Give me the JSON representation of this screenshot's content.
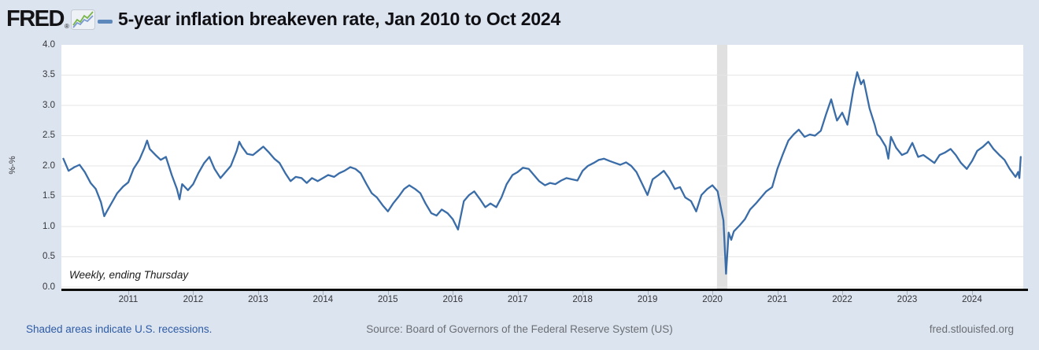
{
  "header": {
    "brand": "FRED",
    "registered_mark": "®",
    "title": "5-year inflation breakeven rate, Jan 2010 to Oct 2024",
    "legend_color": "#5d88bb"
  },
  "chart_data": {
    "type": "line",
    "title": "5-year inflation breakeven rate, Jan 2010 to Oct 2024",
    "ylabel": "%-%",
    "frequency_note": "Weekly, ending Thursday",
    "ylim": [
      0.0,
      4.0
    ],
    "xlim": [
      2010.0,
      2024.85
    ],
    "y_ticks": [
      0.0,
      0.5,
      1.0,
      1.5,
      2.0,
      2.5,
      3.0,
      3.5,
      4.0
    ],
    "y_gridlines": [
      0.0,
      0.5,
      1.0,
      1.5,
      2.0,
      2.5,
      3.0,
      3.5
    ],
    "x_ticks": [
      2011,
      2012,
      2013,
      2014,
      2015,
      2016,
      2017,
      2018,
      2019,
      2020,
      2021,
      2022,
      2023,
      2024
    ],
    "grid": "horizontal",
    "legend_position": "top-left-as-dash",
    "line_color": "#3a6da8",
    "grid_color": "#e6e6e6",
    "recession_color": "#e0e0e0",
    "plot_bg": "#ffffff",
    "page_bg": "#dce4ef",
    "recessions": [
      {
        "start": 2020.07,
        "end": 2020.23
      }
    ],
    "series": [
      {
        "name": "5-year inflation breakeven rate",
        "points": [
          [
            2010.0,
            2.12
          ],
          [
            2010.08,
            1.92
          ],
          [
            2010.17,
            1.98
          ],
          [
            2010.25,
            2.02
          ],
          [
            2010.33,
            1.9
          ],
          [
            2010.42,
            1.72
          ],
          [
            2010.5,
            1.62
          ],
          [
            2010.58,
            1.4
          ],
          [
            2010.63,
            1.17
          ],
          [
            2010.67,
            1.25
          ],
          [
            2010.75,
            1.4
          ],
          [
            2010.83,
            1.55
          ],
          [
            2010.92,
            1.66
          ],
          [
            2011.0,
            1.73
          ],
          [
            2011.08,
            1.95
          ],
          [
            2011.17,
            2.1
          ],
          [
            2011.25,
            2.3
          ],
          [
            2011.29,
            2.42
          ],
          [
            2011.33,
            2.28
          ],
          [
            2011.42,
            2.18
          ],
          [
            2011.5,
            2.1
          ],
          [
            2011.58,
            2.15
          ],
          [
            2011.67,
            1.85
          ],
          [
            2011.75,
            1.62
          ],
          [
            2011.79,
            1.45
          ],
          [
            2011.83,
            1.7
          ],
          [
            2011.92,
            1.6
          ],
          [
            2012.0,
            1.7
          ],
          [
            2012.08,
            1.88
          ],
          [
            2012.17,
            2.05
          ],
          [
            2012.25,
            2.15
          ],
          [
            2012.33,
            1.95
          ],
          [
            2012.42,
            1.8
          ],
          [
            2012.5,
            1.9
          ],
          [
            2012.58,
            2.0
          ],
          [
            2012.67,
            2.25
          ],
          [
            2012.71,
            2.4
          ],
          [
            2012.75,
            2.32
          ],
          [
            2012.83,
            2.2
          ],
          [
            2012.92,
            2.18
          ],
          [
            2013.0,
            2.25
          ],
          [
            2013.08,
            2.32
          ],
          [
            2013.17,
            2.22
          ],
          [
            2013.25,
            2.12
          ],
          [
            2013.33,
            2.05
          ],
          [
            2013.42,
            1.88
          ],
          [
            2013.5,
            1.75
          ],
          [
            2013.58,
            1.82
          ],
          [
            2013.67,
            1.8
          ],
          [
            2013.75,
            1.72
          ],
          [
            2013.83,
            1.8
          ],
          [
            2013.92,
            1.75
          ],
          [
            2014.0,
            1.8
          ],
          [
            2014.08,
            1.85
          ],
          [
            2014.17,
            1.82
          ],
          [
            2014.25,
            1.88
          ],
          [
            2014.33,
            1.92
          ],
          [
            2014.42,
            1.98
          ],
          [
            2014.5,
            1.95
          ],
          [
            2014.58,
            1.88
          ],
          [
            2014.67,
            1.7
          ],
          [
            2014.75,
            1.55
          ],
          [
            2014.83,
            1.48
          ],
          [
            2014.92,
            1.35
          ],
          [
            2015.0,
            1.25
          ],
          [
            2015.08,
            1.38
          ],
          [
            2015.17,
            1.5
          ],
          [
            2015.25,
            1.62
          ],
          [
            2015.33,
            1.68
          ],
          [
            2015.42,
            1.62
          ],
          [
            2015.5,
            1.55
          ],
          [
            2015.58,
            1.38
          ],
          [
            2015.67,
            1.22
          ],
          [
            2015.75,
            1.18
          ],
          [
            2015.83,
            1.28
          ],
          [
            2015.92,
            1.22
          ],
          [
            2016.0,
            1.12
          ],
          [
            2016.08,
            0.95
          ],
          [
            2016.17,
            1.42
          ],
          [
            2016.25,
            1.52
          ],
          [
            2016.33,
            1.58
          ],
          [
            2016.42,
            1.45
          ],
          [
            2016.5,
            1.32
          ],
          [
            2016.58,
            1.38
          ],
          [
            2016.67,
            1.32
          ],
          [
            2016.75,
            1.48
          ],
          [
            2016.83,
            1.7
          ],
          [
            2016.92,
            1.85
          ],
          [
            2017.0,
            1.9
          ],
          [
            2017.08,
            1.97
          ],
          [
            2017.17,
            1.95
          ],
          [
            2017.25,
            1.85
          ],
          [
            2017.33,
            1.75
          ],
          [
            2017.42,
            1.68
          ],
          [
            2017.5,
            1.72
          ],
          [
            2017.58,
            1.7
          ],
          [
            2017.67,
            1.76
          ],
          [
            2017.75,
            1.8
          ],
          [
            2017.83,
            1.78
          ],
          [
            2017.92,
            1.76
          ],
          [
            2018.0,
            1.92
          ],
          [
            2018.08,
            2.0
          ],
          [
            2018.17,
            2.05
          ],
          [
            2018.25,
            2.1
          ],
          [
            2018.33,
            2.12
          ],
          [
            2018.42,
            2.08
          ],
          [
            2018.5,
            2.05
          ],
          [
            2018.58,
            2.02
          ],
          [
            2018.67,
            2.06
          ],
          [
            2018.75,
            2.0
          ],
          [
            2018.83,
            1.9
          ],
          [
            2018.92,
            1.7
          ],
          [
            2019.0,
            1.52
          ],
          [
            2019.08,
            1.78
          ],
          [
            2019.17,
            1.85
          ],
          [
            2019.25,
            1.92
          ],
          [
            2019.33,
            1.8
          ],
          [
            2019.42,
            1.62
          ],
          [
            2019.5,
            1.65
          ],
          [
            2019.58,
            1.48
          ],
          [
            2019.67,
            1.42
          ],
          [
            2019.75,
            1.25
          ],
          [
            2019.83,
            1.52
          ],
          [
            2019.92,
            1.62
          ],
          [
            2020.0,
            1.68
          ],
          [
            2020.08,
            1.58
          ],
          [
            2020.17,
            1.1
          ],
          [
            2020.21,
            0.22
          ],
          [
            2020.25,
            0.9
          ],
          [
            2020.29,
            0.78
          ],
          [
            2020.33,
            0.92
          ],
          [
            2020.42,
            1.02
          ],
          [
            2020.5,
            1.12
          ],
          [
            2020.58,
            1.28
          ],
          [
            2020.67,
            1.38
          ],
          [
            2020.75,
            1.48
          ],
          [
            2020.83,
            1.58
          ],
          [
            2020.92,
            1.65
          ],
          [
            2021.0,
            1.95
          ],
          [
            2021.08,
            2.18
          ],
          [
            2021.17,
            2.42
          ],
          [
            2021.25,
            2.52
          ],
          [
            2021.33,
            2.6
          ],
          [
            2021.42,
            2.48
          ],
          [
            2021.5,
            2.52
          ],
          [
            2021.58,
            2.5
          ],
          [
            2021.67,
            2.58
          ],
          [
            2021.75,
            2.85
          ],
          [
            2021.83,
            3.1
          ],
          [
            2021.88,
            2.9
          ],
          [
            2021.92,
            2.75
          ],
          [
            2022.0,
            2.88
          ],
          [
            2022.08,
            2.68
          ],
          [
            2022.17,
            3.25
          ],
          [
            2022.23,
            3.55
          ],
          [
            2022.29,
            3.35
          ],
          [
            2022.33,
            3.42
          ],
          [
            2022.42,
            2.95
          ],
          [
            2022.5,
            2.68
          ],
          [
            2022.54,
            2.52
          ],
          [
            2022.58,
            2.48
          ],
          [
            2022.67,
            2.32
          ],
          [
            2022.71,
            2.12
          ],
          [
            2022.75,
            2.48
          ],
          [
            2022.83,
            2.3
          ],
          [
            2022.92,
            2.18
          ],
          [
            2023.0,
            2.22
          ],
          [
            2023.08,
            2.38
          ],
          [
            2023.17,
            2.15
          ],
          [
            2023.25,
            2.18
          ],
          [
            2023.33,
            2.12
          ],
          [
            2023.42,
            2.05
          ],
          [
            2023.5,
            2.18
          ],
          [
            2023.58,
            2.22
          ],
          [
            2023.67,
            2.28
          ],
          [
            2023.75,
            2.18
          ],
          [
            2023.83,
            2.05
          ],
          [
            2023.92,
            1.95
          ],
          [
            2024.0,
            2.08
          ],
          [
            2024.08,
            2.25
          ],
          [
            2024.17,
            2.32
          ],
          [
            2024.25,
            2.4
          ],
          [
            2024.33,
            2.28
          ],
          [
            2024.42,
            2.18
          ],
          [
            2024.5,
            2.1
          ],
          [
            2024.58,
            1.95
          ],
          [
            2024.67,
            1.82
          ],
          [
            2024.71,
            1.9
          ],
          [
            2024.73,
            1.8
          ],
          [
            2024.75,
            2.15
          ]
        ]
      }
    ]
  },
  "footer": {
    "recession_note": "Shaded areas indicate U.S. recessions.",
    "source": "Source: Board of Governors of the Federal Reserve System (US)",
    "site": "fred.stlouisfed.org"
  }
}
